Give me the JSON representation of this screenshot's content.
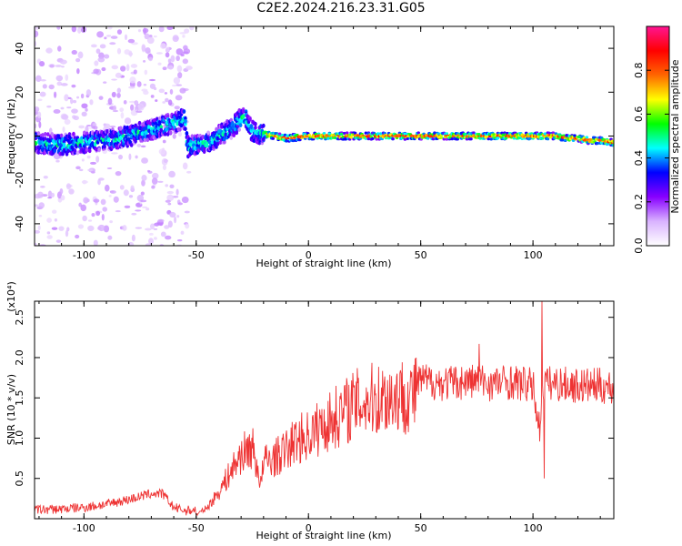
{
  "title": "C2E2.2024.216.23.31.G05",
  "colors": {
    "line": "#ee3333",
    "colormap": [
      "#ffffff",
      "#d9b3ff",
      "#8800ff",
      "#0000ff",
      "#00ffff",
      "#00ff00",
      "#ffff00",
      "#ff6600",
      "#ff0000",
      "#ff1493"
    ]
  },
  "chart_data": [
    {
      "type": "heatmap",
      "title": "",
      "xlabel": "Height of straight line (km)",
      "ylabel": "Frequency (Hz)",
      "xlim": [
        -122,
        136
      ],
      "ylim": [
        -50,
        50
      ],
      "xticks": [
        -100,
        -50,
        0,
        50,
        100
      ],
      "yticks": [
        -40,
        -20,
        0,
        20,
        40
      ],
      "grid": false,
      "colorbar": {
        "label": "Normalized spectral amplitude",
        "range": [
          0,
          1
        ],
        "ticks": [
          "0.0",
          "0.2",
          "0.4",
          "0.6",
          "0.8"
        ],
        "placement": "right"
      },
      "ridge": {
        "x": [
          -122,
          -110,
          -100,
          -90,
          -80,
          -70,
          -60,
          -55,
          -54,
          -45,
          -40,
          -35,
          -30,
          -28,
          -25,
          -20,
          -15,
          -10,
          0,
          20,
          50,
          80,
          100,
          110,
          115,
          120,
          125,
          130,
          136
        ],
        "freq": [
          -3,
          -4,
          -3,
          -2,
          0,
          3,
          6,
          8,
          -5,
          -3,
          0,
          3,
          8,
          9,
          2,
          1,
          0,
          -1,
          0,
          0,
          0,
          0,
          0,
          0,
          -1,
          -1,
          -2,
          -2,
          -3
        ]
      }
    },
    {
      "type": "line",
      "title": "",
      "xlabel": "Height of straight line (km)",
      "ylabel": "SNR (10 * v/v)",
      "y_scale_label": "(x10⁴)",
      "xlim": [
        -122,
        136
      ],
      "ylim": [
        0,
        2.7
      ],
      "xticks": [
        -100,
        -50,
        0,
        50,
        100
      ],
      "yticks": [
        0.5,
        1.0,
        1.5,
        2.0,
        2.5
      ],
      "ytick_labels": [
        "0.5",
        "1.0",
        "1.5",
        "2.0",
        "2.5"
      ],
      "grid": false,
      "series": [
        {
          "envelope_x": [
            -122,
            -110,
            -100,
            -90,
            -80,
            -70,
            -65,
            -60,
            -55,
            -50,
            -45,
            -40,
            -35,
            -30,
            -25,
            -21,
            -20,
            -15,
            -10,
            -5,
            0,
            5,
            10,
            15,
            20,
            25,
            30,
            35,
            40,
            45,
            48,
            50,
            60,
            70,
            75,
            80,
            90,
            100,
            103,
            104,
            105,
            110,
            120,
            130,
            136
          ],
          "envelope_y": [
            0.05,
            0.06,
            0.08,
            0.12,
            0.18,
            0.25,
            0.25,
            0.08,
            0.04,
            0.05,
            0.15,
            0.35,
            0.6,
            0.85,
            0.95,
            0.45,
            0.75,
            0.8,
            0.9,
            1.05,
            1.1,
            1.2,
            1.3,
            1.4,
            1.5,
            1.55,
            1.58,
            1.6,
            1.62,
            1.63,
            1.63,
            1.72,
            1.68,
            1.7,
            1.72,
            1.68,
            1.7,
            1.65,
            1.1,
            1.7,
            1.68,
            1.68,
            1.65,
            1.65,
            1.62
          ],
          "spikes": [
            {
              "x": 76,
              "y": 2.17
            },
            {
              "x": 104,
              "y": 2.7
            },
            {
              "x": 105,
              "y": 0.5
            },
            {
              "x": 48,
              "y": 2.0
            }
          ]
        }
      ]
    }
  ]
}
